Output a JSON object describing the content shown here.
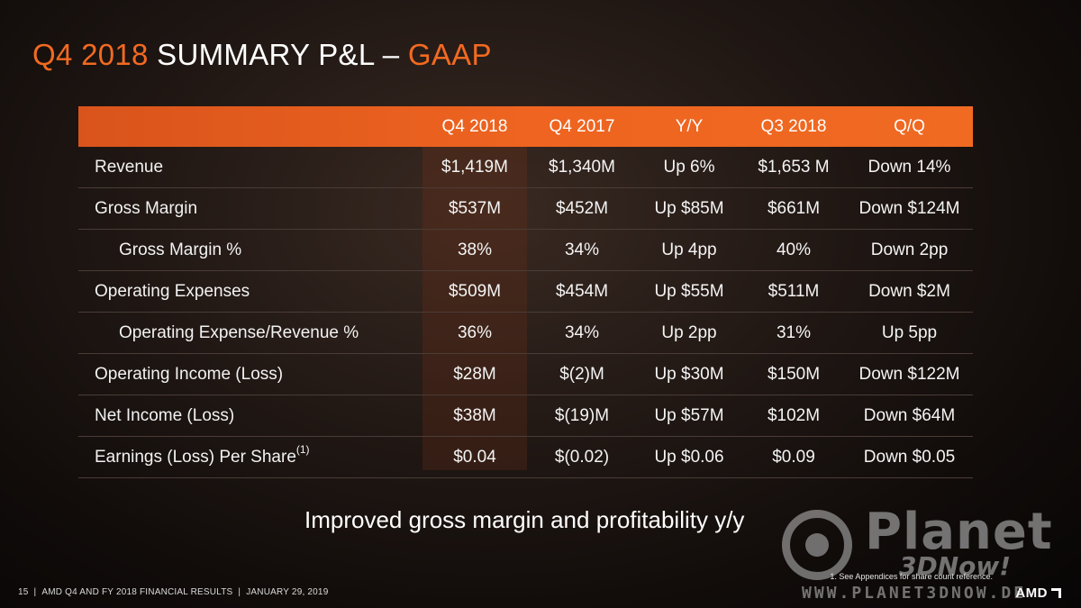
{
  "title": {
    "part1": "Q4 2018 ",
    "part2": "SUMMARY P&L – ",
    "part3": "GAAP"
  },
  "table": {
    "headers": [
      "Q4 2018",
      "Q4 2017",
      "Y/Y",
      "Q3 2018",
      "Q/Q"
    ],
    "rows": [
      {
        "label": "Revenue",
        "sup": "",
        "values": [
          "$1,419M",
          "$1,340M",
          "Up 6%",
          "$1,653 M",
          "Down 14%"
        ]
      },
      {
        "label": "Gross Margin",
        "sup": "",
        "values": [
          "$537M",
          "$452M",
          "Up $85M",
          "$661M",
          "Down $124M"
        ]
      },
      {
        "label": "Gross Margin %",
        "sup": "",
        "values": [
          "38%",
          "34%",
          "Up 4pp",
          "40%",
          "Down 2pp"
        ]
      },
      {
        "label": "Operating Expenses",
        "sup": "",
        "values": [
          "$509M",
          "$454M",
          "Up $55M",
          "$511M",
          "Down $2M"
        ]
      },
      {
        "label": "Operating Expense/Revenue %",
        "sup": "",
        "values": [
          "36%",
          "34%",
          "Up 2pp",
          "31%",
          "Up 5pp"
        ]
      },
      {
        "label": "Operating Income (Loss)",
        "sup": "",
        "values": [
          "$28M",
          "$(2)M",
          "Up $30M",
          "$150M",
          "Down $122M"
        ]
      },
      {
        "label": "Net Income (Loss)",
        "sup": "",
        "values": [
          "$38M",
          "$(19)M",
          "Up $57M",
          "$102M",
          "Down $64M"
        ]
      },
      {
        "label": "Earnings (Loss) Per Share",
        "sup": "(1)",
        "values": [
          "$0.04",
          "$(0.02)",
          "Up $0.06",
          "$0.09",
          "Down $0.05"
        ]
      }
    ]
  },
  "tagline": "Improved gross margin and profitability y/y",
  "footnote": "1.   See Appendices for  share count reference.",
  "footer": {
    "page_number": "15",
    "text": "AMD Q4 AND FY 2018 FINANCIAL RESULTS",
    "date": "JANUARY 29, 2019"
  },
  "logo": "AMD",
  "watermark": {
    "word": "Planet",
    "sub": "3DNow!",
    "url": "WWW.PLANET3DNOW.DE"
  },
  "colors": {
    "accent": "#f26a21",
    "header_bg": "#ee6420",
    "text": "#f2f2f2"
  }
}
